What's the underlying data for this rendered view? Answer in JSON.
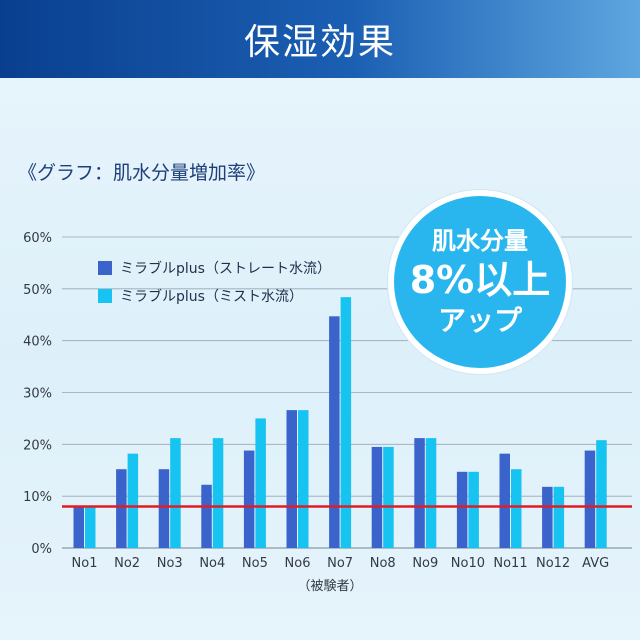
{
  "header": {
    "title": "保湿効果"
  },
  "subtitle": "《グラフ：肌水分量増加率》",
  "badge": {
    "line1": "肌水分量",
    "line2": "8%以上",
    "line3": "アップ"
  },
  "colors": {
    "series1": "#3b63cc",
    "series2": "#17c3f0",
    "reference": "#e21c25"
  },
  "chart_data": {
    "type": "bar",
    "xlabel": "（被験者）",
    "ylabel": "",
    "ylim": [
      0,
      60
    ],
    "yticks": [
      "0%",
      "10%",
      "20%",
      "30%",
      "40%",
      "50%",
      "60%"
    ],
    "categories": [
      "No1",
      "No2",
      "No3",
      "No4",
      "No5",
      "No6",
      "No7",
      "No8",
      "No9",
      "No10",
      "No11",
      "No12",
      "AVG"
    ],
    "series": [
      {
        "name": "ミラブルplus（ストレート水流）",
        "values": [
          7.9,
          15.2,
          15.2,
          12.2,
          18.8,
          26.6,
          44.7,
          19.5,
          21.2,
          14.7,
          18.2,
          11.8,
          18.8
        ]
      },
      {
        "name": "ミラブルplus（ミスト水流）",
        "values": [
          7.9,
          18.2,
          21.2,
          21.2,
          25.0,
          26.6,
          48.4,
          19.5,
          21.2,
          14.7,
          15.2,
          11.8,
          20.8
        ]
      }
    ],
    "reference_line": 8,
    "grid": true,
    "legend": "top-left"
  }
}
